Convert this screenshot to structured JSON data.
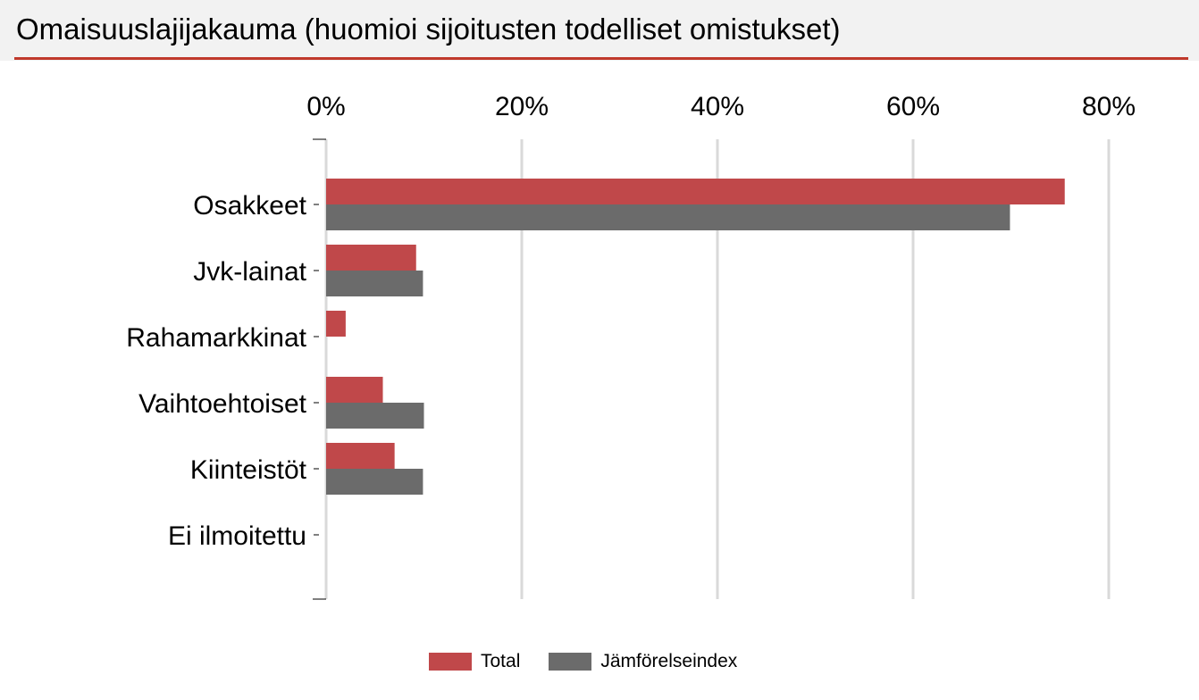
{
  "header": {
    "title": "Omaisuuslajijakauma (huomioi sijoitusten todelliset omistukset)"
  },
  "chart_data": {
    "type": "bar",
    "orientation": "horizontal",
    "categories": [
      "Osakkeet",
      "Jvk-lainat",
      "Rahamarkkinat",
      "Vaihtoehtoiset",
      "Kiinteistöt",
      "Ei ilmoitettu"
    ],
    "series": [
      {
        "name": "Total",
        "values": [
          75.5,
          9.2,
          2.0,
          5.8,
          7.0,
          0
        ],
        "color": "#c0484a"
      },
      {
        "name": "Jämförelseindex",
        "values": [
          69.9,
          9.9,
          0,
          10.0,
          9.9,
          0
        ],
        "color": "#6b6b6b"
      }
    ],
    "xlim": [
      0,
      80
    ],
    "xticks": [
      0,
      20,
      40,
      60,
      80
    ],
    "xtick_labels": [
      "0%",
      "20%",
      "40%",
      "60%",
      "80%"
    ],
    "x_axis_position": "top",
    "grid": true,
    "legend_position": "bottom"
  }
}
